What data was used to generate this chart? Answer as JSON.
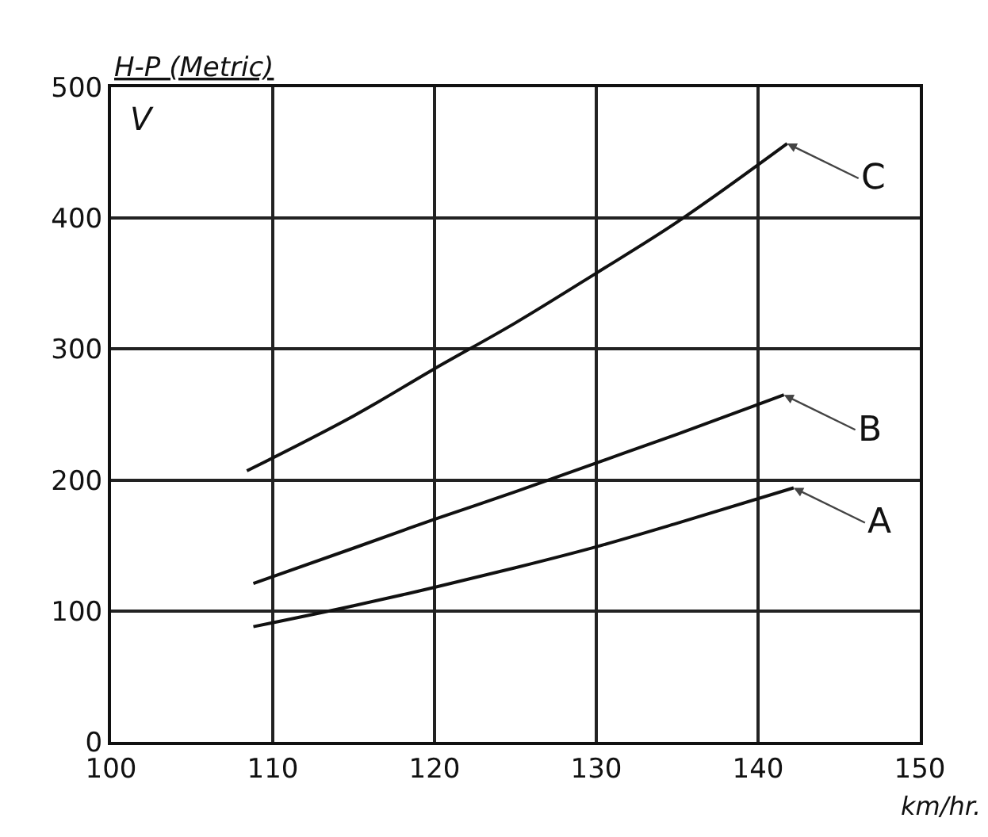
{
  "chart_data": {
    "type": "line",
    "ylabel": "H-P (Metric)",
    "xlabel": "km/hr.",
    "annotations": [
      "V"
    ],
    "xlim": [
      100,
      150
    ],
    "ylim": [
      0,
      500
    ],
    "xticks": [
      100,
      110,
      120,
      130,
      140,
      150
    ],
    "yticks": [
      0,
      100,
      200,
      300,
      400,
      500
    ],
    "grid": true,
    "legend": false,
    "marker": "none",
    "line_style": "solid",
    "series": [
      {
        "name": "A",
        "color": "#111111",
        "x": [
          108.8,
          115,
          120,
          125,
          130,
          135,
          142.2
        ],
        "values": [
          88,
          104,
          118,
          133,
          149,
          167,
          194
        ]
      },
      {
        "name": "B",
        "color": "#111111",
        "x": [
          108.8,
          115,
          120,
          125,
          130,
          135,
          141.6
        ],
        "values": [
          121,
          148,
          170,
          191,
          213,
          235,
          265
        ]
      },
      {
        "name": "C",
        "color": "#111111",
        "x": [
          108.4,
          115,
          120,
          125,
          130,
          135,
          141.8
        ],
        "values": [
          207,
          249,
          285,
          320,
          358,
          397,
          457
        ]
      }
    ]
  }
}
